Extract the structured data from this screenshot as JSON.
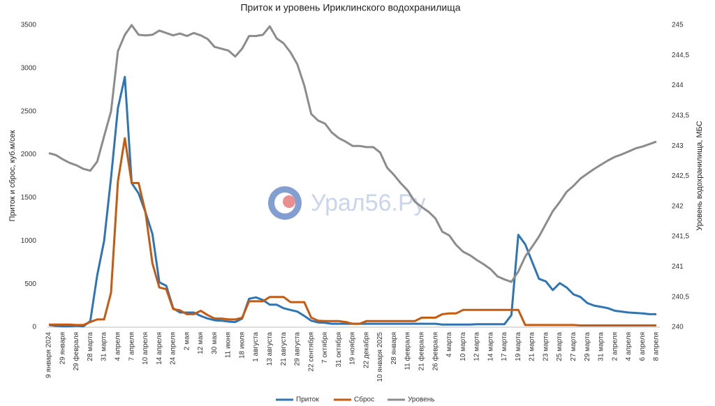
{
  "chart_data": {
    "type": "line",
    "title": "Приток и уровень Ириклинского водохранилища",
    "ylabel": "Приток и сброс, куб.м/сек",
    "y2label": "Уровень водохранилища, МБС",
    "watermark": "Урал56.Ру",
    "categories": [
      "9 января 2024",
      null,
      "29 января",
      null,
      "29 февраля",
      null,
      "28 марта",
      null,
      "31 марта",
      null,
      "4 апреля",
      null,
      "7 апреля",
      null,
      "10 апреля",
      null,
      "14 апреля",
      null,
      "24 апреля",
      null,
      "2 мая",
      null,
      "12 мая",
      null,
      "30 мая",
      null,
      "11 июня",
      null,
      "18 июля",
      null,
      "1 августа",
      null,
      "13 августа",
      null,
      "21 августа",
      null,
      "29 августа",
      null,
      "22 сентября",
      null,
      "7 октября",
      null,
      "31 октября",
      null,
      "19 ноября",
      null,
      "22 декабря",
      null,
      "10 января 2025",
      null,
      "28 января",
      null,
      "11 февраля",
      null,
      "21 февраля",
      null,
      "26 февраля",
      null,
      "4 марта",
      null,
      "10 марта",
      null,
      "12 марта",
      null,
      "14 марта",
      null,
      "17 марта",
      null,
      "19 марта",
      null,
      "21 марта",
      null,
      "23 марта",
      null,
      "25 марта",
      null,
      "27 марта",
      null,
      "29 марта",
      null,
      "31 марта",
      null,
      "2 апреля",
      null,
      "4 апреля",
      null,
      "6 апреля",
      null,
      "8 апреля"
    ],
    "series": [
      {
        "name": "Приток",
        "color": "#2e75b6",
        "values": [
          25,
          15,
          10,
          10,
          15,
          10,
          70,
          600,
          1000,
          1730,
          2540,
          2900,
          1670,
          1550,
          1330,
          1080,
          520,
          480,
          220,
          170,
          170,
          170,
          130,
          100,
          80,
          75,
          65,
          60,
          100,
          330,
          345,
          315,
          260,
          260,
          220,
          200,
          180,
          130,
          75,
          55,
          50,
          40,
          40,
          40,
          40,
          40,
          40,
          40,
          40,
          40,
          40,
          40,
          40,
          40,
          40,
          40,
          40,
          30,
          30,
          30,
          30,
          30,
          35,
          35,
          35,
          35,
          35,
          140,
          1070,
          960,
          760,
          560,
          530,
          430,
          510,
          460,
          380,
          350,
          280,
          250,
          235,
          220,
          190,
          180,
          170,
          165,
          160,
          150,
          150
        ]
      },
      {
        "name": "Сброс",
        "color": "#c55a11",
        "values": [
          30,
          30,
          30,
          30,
          25,
          25,
          60,
          90,
          90,
          400,
          1690,
          2190,
          1670,
          1670,
          1330,
          740,
          460,
          440,
          210,
          195,
          150,
          150,
          190,
          140,
          100,
          100,
          90,
          90,
          110,
          300,
          300,
          300,
          350,
          350,
          350,
          290,
          290,
          290,
          110,
          75,
          70,
          70,
          70,
          60,
          40,
          40,
          70,
          70,
          70,
          70,
          70,
          70,
          70,
          70,
          110,
          110,
          110,
          150,
          160,
          160,
          200,
          200,
          200,
          200,
          200,
          200,
          200,
          200,
          200,
          25,
          25,
          25,
          25,
          25,
          25,
          25,
          25,
          20,
          20,
          20,
          20,
          20,
          20,
          20,
          20,
          20,
          20,
          20,
          20
        ]
      },
      {
        "name": "Уровень",
        "color": "#8c8c8c",
        "axis": "y2",
        "values": [
          242.88,
          242.85,
          242.78,
          242.72,
          242.68,
          242.62,
          242.59,
          242.74,
          243.16,
          243.57,
          244.57,
          244.84,
          245,
          244.84,
          244.83,
          244.84,
          244.91,
          244.87,
          244.83,
          244.86,
          244.82,
          244.87,
          244.83,
          244.77,
          244.64,
          244.61,
          244.58,
          244.48,
          244.61,
          244.82,
          244.82,
          244.84,
          244.98,
          244.78,
          244.7,
          244.55,
          244.35,
          244.0,
          243.53,
          243.42,
          243.37,
          243.22,
          243.13,
          243.07,
          243.0,
          243.0,
          242.98,
          242.98,
          242.89,
          242.64,
          242.52,
          242.38,
          242.26,
          242.08,
          241.99,
          241.91,
          241.8,
          241.58,
          241.52,
          241.36,
          241.25,
          241.19,
          241.11,
          241.04,
          240.96,
          240.84,
          240.79,
          240.75,
          240.92,
          241.17,
          241.33,
          241.5,
          241.71,
          241.92,
          242.07,
          242.24,
          242.34,
          242.46,
          242.54,
          242.62,
          242.69,
          242.76,
          242.82,
          242.86,
          242.91,
          242.96,
          242.99,
          243.03,
          243.07
        ]
      }
    ],
    "ylim": [
      0,
      3500
    ],
    "yticks": [
      0,
      500,
      1000,
      1500,
      2000,
      2500,
      3000,
      3500
    ],
    "y2lim": [
      240,
      245
    ],
    "y2ticks": [
      240,
      {
        "value": 240.5,
        "label": "240,5"
      },
      241,
      {
        "value": 241.5,
        "label": "241,5"
      },
      242,
      {
        "value": 242.5,
        "label": "242,5"
      },
      243,
      {
        "value": 243.5,
        "label": "243,5"
      },
      244,
      {
        "value": 244.5,
        "label": "244,5"
      },
      245
    ],
    "grid": false,
    "legend": "bottom"
  }
}
